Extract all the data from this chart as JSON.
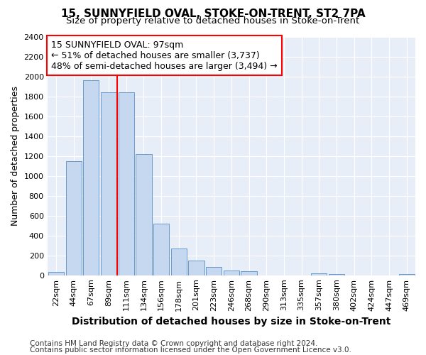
{
  "title": "15, SUNNYFIELD OVAL, STOKE-ON-TRENT, ST2 7PA",
  "subtitle": "Size of property relative to detached houses in Stoke-on-Trent",
  "xlabel": "Distribution of detached houses by size in Stoke-on-Trent",
  "ylabel": "Number of detached properties",
  "categories": [
    "22sqm",
    "44sqm",
    "67sqm",
    "89sqm",
    "111sqm",
    "134sqm",
    "156sqm",
    "178sqm",
    "201sqm",
    "223sqm",
    "246sqm",
    "268sqm",
    "290sqm",
    "313sqm",
    "335sqm",
    "357sqm",
    "380sqm",
    "402sqm",
    "424sqm",
    "447sqm",
    "469sqm"
  ],
  "values": [
    30,
    1150,
    1960,
    1840,
    1840,
    1220,
    520,
    270,
    150,
    80,
    50,
    40,
    0,
    0,
    0,
    20,
    10,
    0,
    0,
    0,
    10
  ],
  "bar_color": "#c5d8f0",
  "bar_edge_color": "#6699cc",
  "vline_x_index": 3.5,
  "vline_color": "red",
  "annotation_text": "15 SUNNYFIELD OVAL: 97sqm\n← 51% of detached houses are smaller (3,737)\n48% of semi-detached houses are larger (3,494) →",
  "annotation_box_color": "white",
  "annotation_box_edge_color": "red",
  "ylim": [
    0,
    2400
  ],
  "yticks": [
    0,
    200,
    400,
    600,
    800,
    1000,
    1200,
    1400,
    1600,
    1800,
    2000,
    2200,
    2400
  ],
  "footer1": "Contains HM Land Registry data © Crown copyright and database right 2024.",
  "footer2": "Contains public sector information licensed under the Open Government Licence v3.0.",
  "bg_color": "#ffffff",
  "plot_bg_color": "#e8eef8",
  "title_fontsize": 11,
  "subtitle_fontsize": 9.5,
  "xlabel_fontsize": 10,
  "ylabel_fontsize": 9,
  "tick_fontsize": 8,
  "annotation_fontsize": 9,
  "footer_fontsize": 7.5
}
